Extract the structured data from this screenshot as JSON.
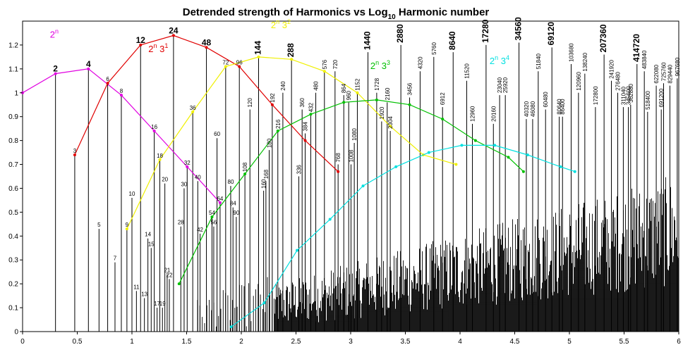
{
  "chart_data": {
    "type": "scatter",
    "title": "Detrended strength of Harmonics  vs  Log",
    "title_subscript": "10",
    "title_suffix": " Harmonic number",
    "xlim": [
      0,
      6
    ],
    "ylim": [
      0,
      1.3
    ],
    "x_ticks": [
      {
        "v": 0,
        "label": "0"
      },
      {
        "v": 0.5,
        "label": "0.5"
      },
      {
        "v": 1,
        "label": "1"
      },
      {
        "v": 1.5,
        "label": "1.5"
      },
      {
        "v": 2,
        "label": "2"
      },
      {
        "v": 2.5,
        "label": "2.5"
      },
      {
        "v": 3,
        "label": "3"
      },
      {
        "v": 3.5,
        "label": "3.5"
      },
      {
        "v": 4,
        "label": "4"
      },
      {
        "v": 4.5,
        "label": "4.5"
      },
      {
        "v": 5,
        "label": "5"
      },
      {
        "v": 5.5,
        "label": "5.5"
      },
      {
        "v": 6,
        "label": "6"
      }
    ],
    "y_ticks": [
      {
        "v": 0,
        "label": "0"
      },
      {
        "v": 0.1,
        "label": "0.1"
      },
      {
        "v": 0.2,
        "label": "0.2"
      },
      {
        "v": 0.3,
        "label": "0.3"
      },
      {
        "v": 0.4,
        "label": "0.4"
      },
      {
        "v": 0.5,
        "label": "0.5"
      },
      {
        "v": 0.6,
        "label": "0.6"
      },
      {
        "v": 0.7,
        "label": "0.7"
      },
      {
        "v": 0.8,
        "label": "0.8"
      },
      {
        "v": 0.9,
        "label": "0.9"
      },
      {
        "v": 1,
        "label": "1"
      },
      {
        "v": 1.1,
        "label": "1.1"
      },
      {
        "v": 1.2,
        "label": "1.2"
      }
    ],
    "highlighted_harmonics": [
      {
        "n": "2",
        "x": 0.301,
        "y": 1.08,
        "bold": true
      },
      {
        "n": "3",
        "x": 0.477,
        "y": 0.74
      },
      {
        "n": "4",
        "x": 0.602,
        "y": 1.1,
        "bold": true
      },
      {
        "n": "5",
        "x": 0.699,
        "y": 0.43
      },
      {
        "n": "6",
        "x": 0.778,
        "y": 1.04
      },
      {
        "n": "7",
        "x": 0.845,
        "y": 0.29
      },
      {
        "n": "8",
        "x": 0.903,
        "y": 0.99
      },
      {
        "n": "9",
        "x": 0.954,
        "y": 0.43
      },
      {
        "n": "10",
        "x": 1.0,
        "y": 0.56
      },
      {
        "n": "11",
        "x": 1.041,
        "y": 0.17
      },
      {
        "n": "12",
        "x": 1.079,
        "y": 1.2,
        "bold": true
      },
      {
        "n": "13",
        "x": 1.114,
        "y": 0.14
      },
      {
        "n": "14",
        "x": 1.146,
        "y": 0.39
      },
      {
        "n": "15",
        "x": 1.176,
        "y": 0.35
      },
      {
        "n": "16",
        "x": 1.204,
        "y": 0.84
      },
      {
        "n": "17",
        "x": 1.23,
        "y": 0.1
      },
      {
        "n": "18",
        "x": 1.255,
        "y": 0.72
      },
      {
        "n": "19",
        "x": 1.279,
        "y": 0.1
      },
      {
        "n": "20",
        "x": 1.301,
        "y": 0.62
      },
      {
        "n": "21",
        "x": 1.322,
        "y": 0.24
      },
      {
        "n": "22",
        "x": 1.342,
        "y": 0.22
      },
      {
        "n": "24",
        "x": 1.38,
        "y": 1.24,
        "bold": true
      },
      {
        "n": "28",
        "x": 1.447,
        "y": 0.44
      },
      {
        "n": "30",
        "x": 1.477,
        "y": 0.6
      },
      {
        "n": "32",
        "x": 1.505,
        "y": 0.69
      },
      {
        "n": "36",
        "x": 1.556,
        "y": 0.92
      },
      {
        "n": "40",
        "x": 1.602,
        "y": 0.63
      },
      {
        "n": "42",
        "x": 1.623,
        "y": 0.41
      },
      {
        "n": "48",
        "x": 1.681,
        "y": 1.19,
        "bold": true
      },
      {
        "n": "54",
        "x": 1.732,
        "y": 0.48
      },
      {
        "n": "56",
        "x": 1.748,
        "y": 0.44
      },
      {
        "n": "60",
        "x": 1.778,
        "y": 0.81
      },
      {
        "n": "64",
        "x": 1.806,
        "y": 0.54
      },
      {
        "n": "72",
        "x": 1.857,
        "y": 1.11
      },
      {
        "n": "80",
        "x": 1.903,
        "y": 0.61
      },
      {
        "n": "84",
        "x": 1.924,
        "y": 0.52
      },
      {
        "n": "90",
        "x": 1.954,
        "y": 0.48
      },
      {
        "n": "96",
        "x": 1.982,
        "y": 1.11
      },
      {
        "n": "108",
        "x": 2.033,
        "y": 0.66
      },
      {
        "n": "120",
        "x": 2.079,
        "y": 0.93
      },
      {
        "n": "144",
        "x": 2.158,
        "y": 1.15,
        "bold": true
      },
      {
        "n": "160",
        "x": 2.204,
        "y": 0.59
      },
      {
        "n": "168",
        "x": 2.225,
        "y": 0.63
      },
      {
        "n": "180",
        "x": 2.255,
        "y": 0.76
      },
      {
        "n": "192",
        "x": 2.283,
        "y": 0.95
      },
      {
        "n": "216",
        "x": 2.334,
        "y": 0.84
      },
      {
        "n": "240",
        "x": 2.38,
        "y": 1.0
      },
      {
        "n": "288",
        "x": 2.459,
        "y": 1.14,
        "bold": true
      },
      {
        "n": "336",
        "x": 2.526,
        "y": 0.65
      },
      {
        "n": "360",
        "x": 2.556,
        "y": 0.93
      },
      {
        "n": "384",
        "x": 2.584,
        "y": 0.83
      },
      {
        "n": "432",
        "x": 2.635,
        "y": 0.91
      },
      {
        "n": "480",
        "x": 2.681,
        "y": 1.0
      },
      {
        "n": "576",
        "x": 2.76,
        "y": 1.09
      },
      {
        "n": "720",
        "x": 2.857,
        "y": 1.09
      },
      {
        "n": "768",
        "x": 2.885,
        "y": 0.7
      },
      {
        "n": "864",
        "x": 2.937,
        "y": 0.99
      },
      {
        "n": "960",
        "x": 2.982,
        "y": 0.96
      },
      {
        "n": "1008",
        "x": 3.003,
        "y": 0.7
      },
      {
        "n": "1080",
        "x": 3.033,
        "y": 0.79
      },
      {
        "n": "1152",
        "x": 3.061,
        "y": 1.0
      },
      {
        "n": "1440",
        "x": 3.158,
        "y": 1.17,
        "bold": true
      },
      {
        "n": "1728",
        "x": 3.238,
        "y": 1.0
      },
      {
        "n": "1920",
        "x": 3.283,
        "y": 0.88
      },
      {
        "n": "2160",
        "x": 3.334,
        "y": 0.96
      },
      {
        "n": "2304",
        "x": 3.362,
        "y": 0.84
      },
      {
        "n": "2880",
        "x": 3.459,
        "y": 1.2,
        "bold": true
      },
      {
        "n": "3456",
        "x": 3.539,
        "y": 0.98
      },
      {
        "n": "4320",
        "x": 3.635,
        "y": 1.09
      },
      {
        "n": "5760",
        "x": 3.76,
        "y": 1.15
      },
      {
        "n": "6912",
        "x": 3.84,
        "y": 0.94
      },
      {
        "n": "8640",
        "x": 3.937,
        "y": 1.17,
        "bold": true
      },
      {
        "n": "11520",
        "x": 4.061,
        "y": 1.05
      },
      {
        "n": "12960",
        "x": 4.113,
        "y": 0.87
      },
      {
        "n": "17280",
        "x": 4.238,
        "y": 1.2,
        "bold": true
      },
      {
        "n": "20160",
        "x": 4.305,
        "y": 0.87
      },
      {
        "n": "23040",
        "x": 4.362,
        "y": 0.99
      },
      {
        "n": "25920",
        "x": 4.414,
        "y": 0.99
      },
      {
        "n": "34560",
        "x": 4.539,
        "y": 1.21,
        "bold": true
      },
      {
        "n": "40320",
        "x": 4.606,
        "y": 0.89
      },
      {
        "n": "46080",
        "x": 4.664,
        "y": 0.89
      },
      {
        "n": "51840",
        "x": 4.715,
        "y": 1.09
      },
      {
        "n": "60480",
        "x": 4.782,
        "y": 0.93
      },
      {
        "n": "69120",
        "x": 4.84,
        "y": 1.19,
        "bold": true
      },
      {
        "n": "80640",
        "x": 4.907,
        "y": 0.9
      },
      {
        "n": "86400",
        "x": 4.937,
        "y": 0.9
      },
      {
        "n": "103680",
        "x": 5.016,
        "y": 1.12
      },
      {
        "n": "120960",
        "x": 5.083,
        "y": 1.0
      },
      {
        "n": "138240",
        "x": 5.141,
        "y": 1.08
      },
      {
        "n": "172800",
        "x": 5.238,
        "y": 0.94
      },
      {
        "n": "207360",
        "x": 5.317,
        "y": 1.16,
        "bold": true
      },
      {
        "n": "241920",
        "x": 5.384,
        "y": 1.05
      },
      {
        "n": "276480",
        "x": 5.442,
        "y": 1.0
      },
      {
        "n": "311040",
        "x": 5.493,
        "y": 0.94
      },
      {
        "n": "345600",
        "x": 5.539,
        "y": 0.94
      },
      {
        "n": "362880",
        "x": 5.56,
        "y": 0.95
      },
      {
        "n": "414720",
        "x": 5.618,
        "y": 1.12,
        "bold": true
      },
      {
        "n": "483840",
        "x": 5.685,
        "y": 1.09
      },
      {
        "n": "518400",
        "x": 5.715,
        "y": 0.92
      },
      {
        "n": "622080",
        "x": 5.794,
        "y": 1.03
      },
      {
        "n": "691200",
        "x": 5.84,
        "y": 0.93
      },
      {
        "n": "725760",
        "x": 5.861,
        "y": 1.04
      },
      {
        "n": "829440",
        "x": 5.919,
        "y": 1.03
      },
      {
        "n": "967680",
        "x": 5.986,
        "y": 1.06
      }
    ],
    "series": [
      {
        "name": "2",
        "exp": "n",
        "mid": "",
        "color": "#e000e0",
        "points": [
          [
            0,
            1.0
          ],
          [
            0.301,
            1.08
          ],
          [
            0.602,
            1.1
          ],
          [
            0.903,
            0.99
          ],
          [
            1.204,
            0.84
          ],
          [
            1.505,
            0.69
          ],
          [
            1.806,
            0.54
          ]
        ]
      },
      {
        "name": "2",
        "exp": "n",
        "mid": " 3",
        "exp2": "1",
        "color": "#e00000",
        "points": [
          [
            0.477,
            0.74
          ],
          [
            0.778,
            1.04
          ],
          [
            1.079,
            1.2
          ],
          [
            1.38,
            1.24
          ],
          [
            1.681,
            1.19
          ],
          [
            1.982,
            1.11
          ],
          [
            2.283,
            0.95
          ],
          [
            2.584,
            0.8
          ],
          [
            2.885,
            0.67
          ]
        ]
      },
      {
        "name": "2",
        "exp": "n",
        "mid": " 3",
        "exp2": "2",
        "color": "#f0f000",
        "points": [
          [
            0.954,
            0.43
          ],
          [
            1.255,
            0.72
          ],
          [
            1.556,
            0.92
          ],
          [
            1.857,
            1.11
          ],
          [
            2.158,
            1.15
          ],
          [
            2.459,
            1.14
          ],
          [
            2.76,
            1.09
          ],
          [
            3.061,
            1.0
          ],
          [
            3.362,
            0.86
          ],
          [
            3.663,
            0.74
          ],
          [
            3.964,
            0.7
          ]
        ]
      },
      {
        "name": "2",
        "exp": "n",
        "mid": " 3",
        "exp2": "3",
        "color": "#00c000",
        "points": [
          [
            1.431,
            0.2
          ],
          [
            1.732,
            0.48
          ],
          [
            2.033,
            0.66
          ],
          [
            2.334,
            0.84
          ],
          [
            2.635,
            0.91
          ],
          [
            2.937,
            0.96
          ],
          [
            3.238,
            0.97
          ],
          [
            3.539,
            0.95
          ],
          [
            3.84,
            0.89
          ],
          [
            4.141,
            0.8
          ],
          [
            4.442,
            0.73
          ],
          [
            4.58,
            0.67
          ]
        ]
      },
      {
        "name": "2",
        "exp": "n",
        "mid": " 3",
        "exp2": "4",
        "color": "#00e0e0",
        "points": [
          [
            1.908,
            0.02
          ],
          [
            2.209,
            0.12
          ],
          [
            2.51,
            0.34
          ],
          [
            2.811,
            0.47
          ],
          [
            3.113,
            0.61
          ],
          [
            3.414,
            0.69
          ],
          [
            3.715,
            0.75
          ],
          [
            4.016,
            0.78
          ],
          [
            4.317,
            0.78
          ],
          [
            4.618,
            0.74
          ],
          [
            4.919,
            0.69
          ],
          [
            5.05,
            0.67
          ]
        ]
      }
    ],
    "series_label_pos": [
      {
        "x": 0.25,
        "y": 1.23
      },
      {
        "x": 1.15,
        "y": 1.17
      },
      {
        "x": 2.27,
        "y": 1.27
      },
      {
        "x": 3.18,
        "y": 1.1
      },
      {
        "x": 4.27,
        "y": 1.12
      }
    ],
    "background_spikes": "all harmonics up to ~10^6 shown as thin black vertical lines from 0",
    "grid": false
  }
}
